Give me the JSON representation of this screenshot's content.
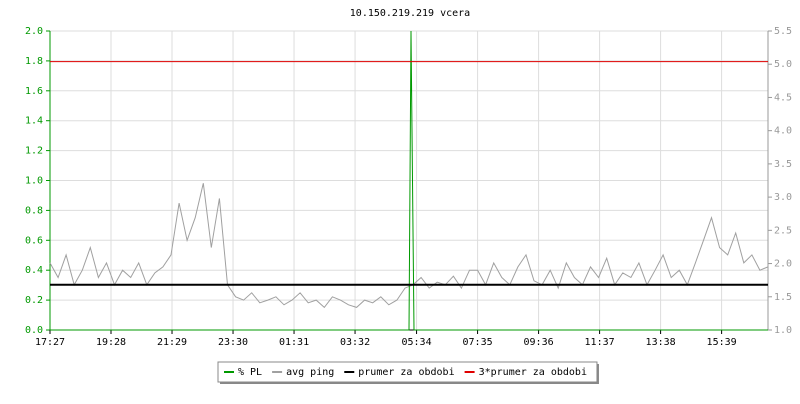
{
  "chart_data": {
    "type": "line",
    "title": "10.150.219.219 vcera",
    "xlim": [
      0,
      1424
    ],
    "xticks": [
      {
        "value": 0,
        "label": "17:27"
      },
      {
        "value": 121,
        "label": "19:28"
      },
      {
        "value": 242,
        "label": "21:29"
      },
      {
        "value": 363,
        "label": "23:30"
      },
      {
        "value": 484,
        "label": "01:31"
      },
      {
        "value": 605,
        "label": "03:32"
      },
      {
        "value": 727,
        "label": "05:34"
      },
      {
        "value": 848,
        "label": "07:35"
      },
      {
        "value": 969,
        "label": "09:36"
      },
      {
        "value": 1090,
        "label": "11:37"
      },
      {
        "value": 1211,
        "label": "13:38"
      },
      {
        "value": 1332,
        "label": "15:39"
      }
    ],
    "ylim": [
      0,
      2
    ],
    "yticks": [
      {
        "value": 0,
        "label": "0.0"
      },
      0.2,
      0.4,
      0.6,
      0.8,
      {
        "value": 1,
        "label": "1.0"
      },
      1.2,
      1.4,
      1.6,
      1.8,
      {
        "value": 2,
        "label": "2.0"
      }
    ],
    "y2lim": [
      1,
      5.5
    ],
    "y2ticks": [
      {
        "value": 1,
        "label": "1.0"
      },
      1.5,
      {
        "value": 2,
        "label": "2.0"
      },
      2.5,
      {
        "value": 3,
        "label": "3.0"
      },
      3.5,
      {
        "value": 4,
        "label": "4.0"
      },
      4.5,
      {
        "value": 5,
        "label": "5.0"
      },
      5.5
    ],
    "y_color": "#009900",
    "y2_color": "#999999",
    "grid": true,
    "series": [
      {
        "name": "% PL",
        "color": "#009900",
        "x": [
          0,
          712,
          716,
          719,
          722,
          1424
        ],
        "values": [
          0,
          0,
          2,
          1,
          0,
          0
        ]
      },
      {
        "name": "avg ping",
        "color": "#a0a0a0",
        "axis": "y2",
        "x": [
          0,
          16,
          32,
          48,
          64,
          80,
          96,
          112,
          128,
          144,
          160,
          176,
          192,
          208,
          224,
          240,
          256,
          272,
          288,
          304,
          320,
          336,
          352,
          368,
          384,
          400,
          416,
          432,
          448,
          464,
          480,
          496,
          512,
          528,
          544,
          560,
          576,
          592,
          608,
          624,
          640,
          656,
          672,
          688,
          704,
          720,
          736,
          752,
          768,
          784,
          800,
          816,
          832,
          848,
          864,
          880,
          896,
          912,
          928,
          944,
          960,
          976,
          992,
          1008,
          1024,
          1040,
          1056,
          1072,
          1088,
          1104,
          1120,
          1136,
          1152,
          1168,
          1184,
          1200,
          1216,
          1232,
          1248,
          1264,
          1280,
          1296,
          1312,
          1328,
          1344,
          1360,
          1376,
          1392,
          1408,
          1424
        ],
        "values": [
          2.01,
          1.79,
          2.13,
          1.68,
          1.9,
          2.24,
          1.79,
          2.01,
          1.68,
          1.9,
          1.79,
          2.01,
          1.68,
          1.86,
          1.95,
          2.13,
          2.91,
          2.35,
          2.69,
          3.21,
          2.24,
          2.98,
          1.68,
          1.5,
          1.45,
          1.56,
          1.41,
          1.45,
          1.5,
          1.38,
          1.45,
          1.56,
          1.41,
          1.45,
          1.34,
          1.5,
          1.45,
          1.38,
          1.34,
          1.45,
          1.41,
          1.5,
          1.38,
          1.45,
          1.63,
          1.68,
          1.79,
          1.63,
          1.72,
          1.68,
          1.81,
          1.63,
          1.9,
          1.9,
          1.68,
          2.01,
          1.79,
          1.68,
          1.95,
          2.13,
          1.74,
          1.68,
          1.9,
          1.63,
          2.01,
          1.79,
          1.68,
          1.95,
          1.79,
          2.08,
          1.68,
          1.86,
          1.79,
          2.01,
          1.68,
          1.9,
          2.13,
          1.79,
          1.9,
          1.68,
          2.01,
          2.35,
          2.69,
          2.24,
          2.13,
          2.46,
          2.01,
          2.13,
          1.9,
          1.95
        ]
      },
      {
        "name": "prumer za obdobi",
        "color": "#000000",
        "axis": "y2",
        "x": [
          0,
          1424
        ],
        "values": [
          1.68,
          1.68
        ]
      },
      {
        "name": "3*prumer za obdobi",
        "color": "#e00000",
        "axis": "y2",
        "x": [
          0,
          1424
        ],
        "values": [
          5.04,
          5.04
        ]
      }
    ]
  }
}
